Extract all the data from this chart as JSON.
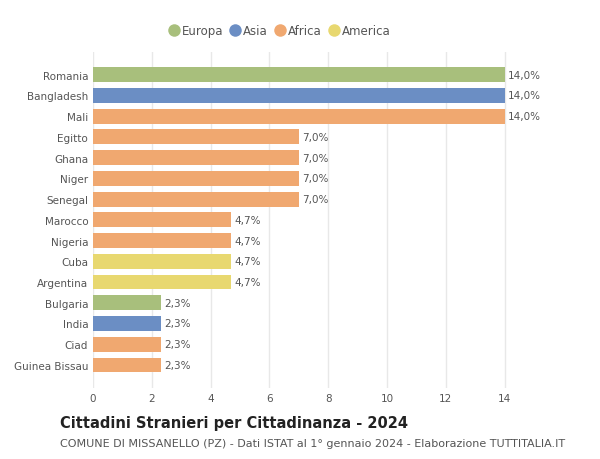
{
  "categories": [
    "Guinea Bissau",
    "Ciad",
    "India",
    "Bulgaria",
    "Argentina",
    "Cuba",
    "Nigeria",
    "Marocco",
    "Senegal",
    "Niger",
    "Ghana",
    "Egitto",
    "Mali",
    "Bangladesh",
    "Romania"
  ],
  "values": [
    2.3,
    2.3,
    2.3,
    2.3,
    4.7,
    4.7,
    4.7,
    4.7,
    7.0,
    7.0,
    7.0,
    7.0,
    14.0,
    14.0,
    14.0
  ],
  "colors": [
    "#f0a870",
    "#f0a870",
    "#6b8ec4",
    "#a8bf7c",
    "#e8d870",
    "#e8d870",
    "#f0a870",
    "#f0a870",
    "#f0a870",
    "#f0a870",
    "#f0a870",
    "#f0a870",
    "#f0a870",
    "#6b8ec4",
    "#a8bf7c"
  ],
  "bar_labels": [
    "2,3%",
    "2,3%",
    "2,3%",
    "2,3%",
    "4,7%",
    "4,7%",
    "4,7%",
    "4,7%",
    "7,0%",
    "7,0%",
    "7,0%",
    "7,0%",
    "14,0%",
    "14,0%",
    "14,0%"
  ],
  "legend_labels": [
    "Europa",
    "Asia",
    "Africa",
    "America"
  ],
  "legend_colors": [
    "#a8bf7c",
    "#6b8ec4",
    "#f0a870",
    "#e8d870"
  ],
  "title": "Cittadini Stranieri per Cittadinanza - 2024",
  "subtitle": "COMUNE DI MISSANELLO (PZ) - Dati ISTAT al 1° gennaio 2024 - Elaborazione TUTTITALIA.IT",
  "xlim": [
    0,
    15.2
  ],
  "xticks": [
    0,
    2,
    4,
    6,
    8,
    10,
    12,
    14
  ],
  "background_color": "#ffffff",
  "grid_color": "#e8e8e8",
  "bar_height": 0.72,
  "title_fontsize": 10.5,
  "subtitle_fontsize": 8,
  "label_fontsize": 7.5,
  "tick_fontsize": 7.5,
  "legend_fontsize": 8.5
}
